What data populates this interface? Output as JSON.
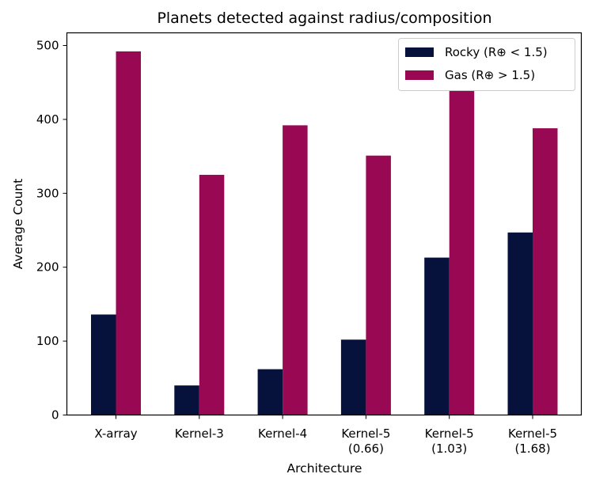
{
  "chart_data": {
    "type": "bar",
    "title": "Planets detected against radius/composition",
    "xlabel": "Architecture",
    "ylabel": "Average Count",
    "categories": [
      [
        "X-array"
      ],
      [
        "Kernel-3"
      ],
      [
        "Kernel-4"
      ],
      [
        "Kernel-5",
        "(0.66)"
      ],
      [
        "Kernel-5",
        "(1.03)"
      ],
      [
        "Kernel-5",
        "(1.68)"
      ]
    ],
    "series": [
      {
        "name": "Rocky (R⊕ < 1.5)",
        "color": "#06113c",
        "values": [
          136,
          40,
          62,
          102,
          213,
          247
        ]
      },
      {
        "name": "Gas (R⊕ > 1.5)",
        "color": "#990852",
        "values": [
          492,
          325,
          392,
          351,
          439,
          388
        ]
      }
    ],
    "ylim": [
      0,
      500
    ],
    "yticks": [
      0,
      100,
      200,
      300,
      400,
      500
    ],
    "grid": false,
    "legend_position": "top-right"
  }
}
